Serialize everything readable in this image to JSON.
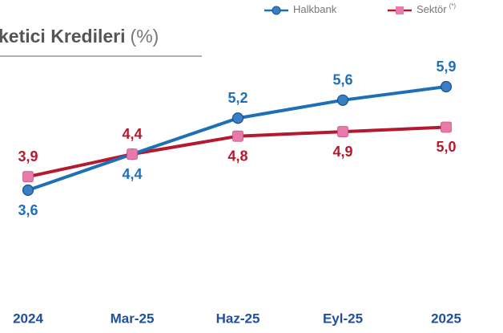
{
  "chart_data": {
    "type": "line",
    "title": "ketici Kredileri",
    "title_unit": "(%)",
    "legend_note": "(*)",
    "categories": [
      "2024",
      "Mar-25",
      "Haz-25",
      "Eyl-25",
      "2025"
    ],
    "series": [
      {
        "name": "Halkbank",
        "color": "#1e6fb8",
        "marker_color": "#3a7fc4",
        "values": [
          3.6,
          4.4,
          5.2,
          5.6,
          5.9
        ],
        "value_labels": [
          "3,6",
          "4,4",
          "5,2",
          "5,6",
          "5,9"
        ],
        "label_side": [
          "below",
          "below",
          "above",
          "above",
          "above"
        ]
      },
      {
        "name": "Sektör",
        "color": "#b5192e",
        "marker_color": "#e77aa8",
        "values": [
          3.9,
          4.4,
          4.8,
          4.9,
          5.0
        ],
        "value_labels": [
          "3,9",
          "4,4",
          "4,8",
          "4,9",
          "5,0"
        ],
        "label_side": [
          "above",
          "above",
          "below",
          "below",
          "below"
        ]
      }
    ]
  }
}
